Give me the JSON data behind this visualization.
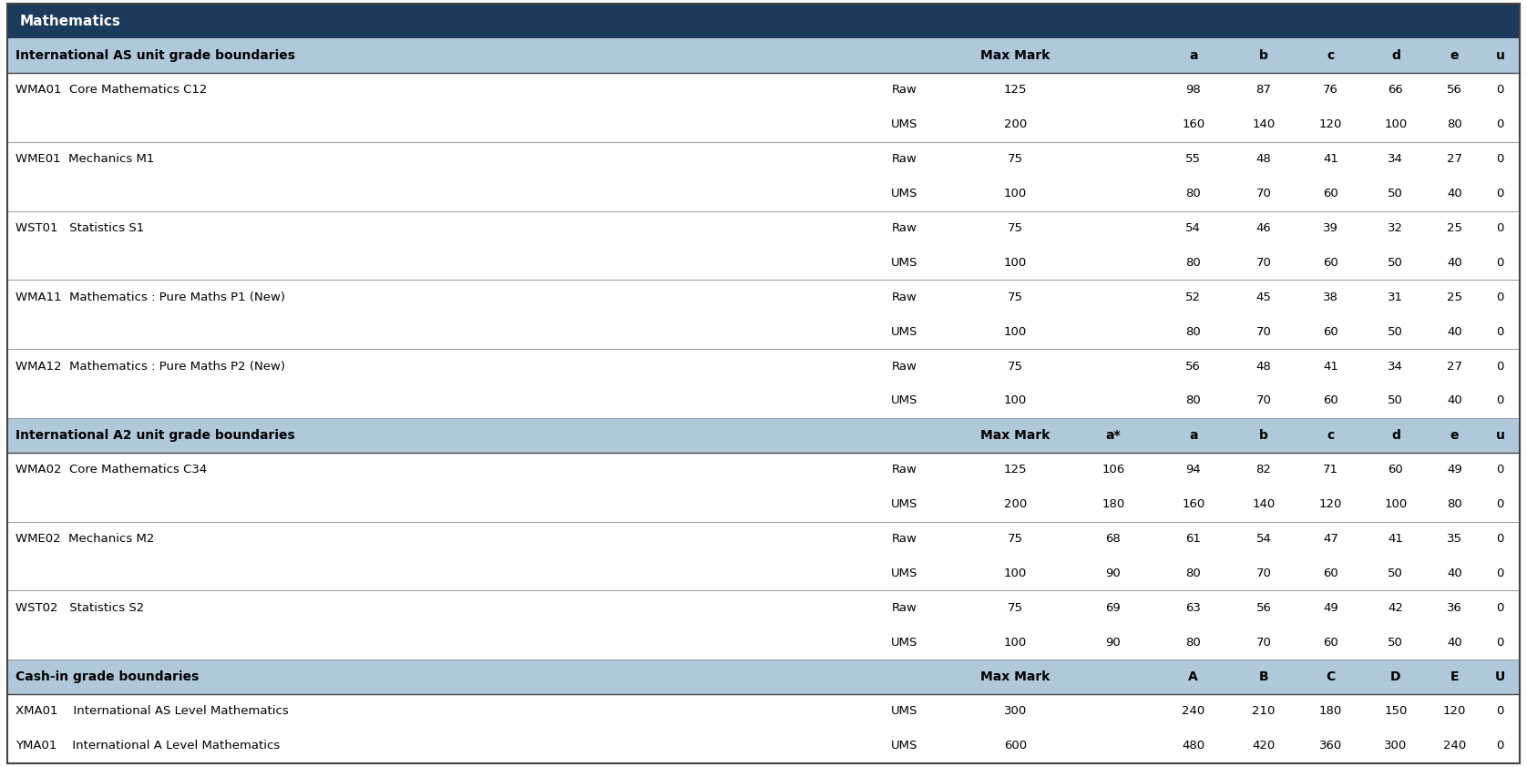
{
  "title": "Mathematics",
  "title_bg": "#1b3a5c",
  "title_fg": "#ffffff",
  "section1_header": "International AS unit grade boundaries",
  "section2_header": "International A2 unit grade boundaries",
  "section3_header": "Cash-in grade boundaries",
  "section_bg": "#afc9db",
  "bg_white": "#ffffff",
  "sep_color": "#999999",
  "border_color": "#444444",
  "rows_as": [
    [
      "WMA01  Core Mathematics C12",
      "Raw",
      "125",
      "",
      "98",
      "87",
      "76",
      "66",
      "56",
      "0"
    ],
    [
      "",
      "UMS",
      "200",
      "",
      "160",
      "140",
      "120",
      "100",
      "80",
      "0"
    ],
    [
      "WME01  Mechanics M1",
      "Raw",
      "75",
      "",
      "55",
      "48",
      "41",
      "34",
      "27",
      "0"
    ],
    [
      "",
      "UMS",
      "100",
      "",
      "80",
      "70",
      "60",
      "50",
      "40",
      "0"
    ],
    [
      "WST01   Statistics S1",
      "Raw",
      "75",
      "",
      "54",
      "46",
      "39",
      "32",
      "25",
      "0"
    ],
    [
      "",
      "UMS",
      "100",
      "",
      "80",
      "70",
      "60",
      "50",
      "40",
      "0"
    ],
    [
      "WMA11  Mathematics : Pure Maths P1 (New)",
      "Raw",
      "75",
      "",
      "52",
      "45",
      "38",
      "31",
      "25",
      "0"
    ],
    [
      "",
      "UMS",
      "100",
      "",
      "80",
      "70",
      "60",
      "50",
      "40",
      "0"
    ],
    [
      "WMA12  Mathematics : Pure Maths P2 (New)",
      "Raw",
      "75",
      "",
      "56",
      "48",
      "41",
      "34",
      "27",
      "0"
    ],
    [
      "",
      "UMS",
      "100",
      "",
      "80",
      "70",
      "60",
      "50",
      "40",
      "0"
    ]
  ],
  "rows_a2": [
    [
      "WMA02  Core Mathematics C34",
      "Raw",
      "125",
      "106",
      "94",
      "82",
      "71",
      "60",
      "49",
      "0"
    ],
    [
      "",
      "UMS",
      "200",
      "180",
      "160",
      "140",
      "120",
      "100",
      "80",
      "0"
    ],
    [
      "WME02  Mechanics M2",
      "Raw",
      "75",
      "68",
      "61",
      "54",
      "47",
      "41",
      "35",
      "0"
    ],
    [
      "",
      "UMS",
      "100",
      "90",
      "80",
      "70",
      "60",
      "50",
      "40",
      "0"
    ],
    [
      "WST02   Statistics S2",
      "Raw",
      "75",
      "69",
      "63",
      "56",
      "49",
      "42",
      "36",
      "0"
    ],
    [
      "",
      "UMS",
      "100",
      "90",
      "80",
      "70",
      "60",
      "50",
      "40",
      "0"
    ]
  ],
  "rows_cashin": [
    [
      "XMA01    International AS Level Mathematics",
      "UMS",
      "300",
      "",
      "240",
      "210",
      "180",
      "150",
      "120",
      "0"
    ],
    [
      "YMA01    International A Level Mathematics",
      "UMS",
      "600",
      "",
      "480",
      "420",
      "360",
      "300",
      "240",
      "0"
    ]
  ]
}
